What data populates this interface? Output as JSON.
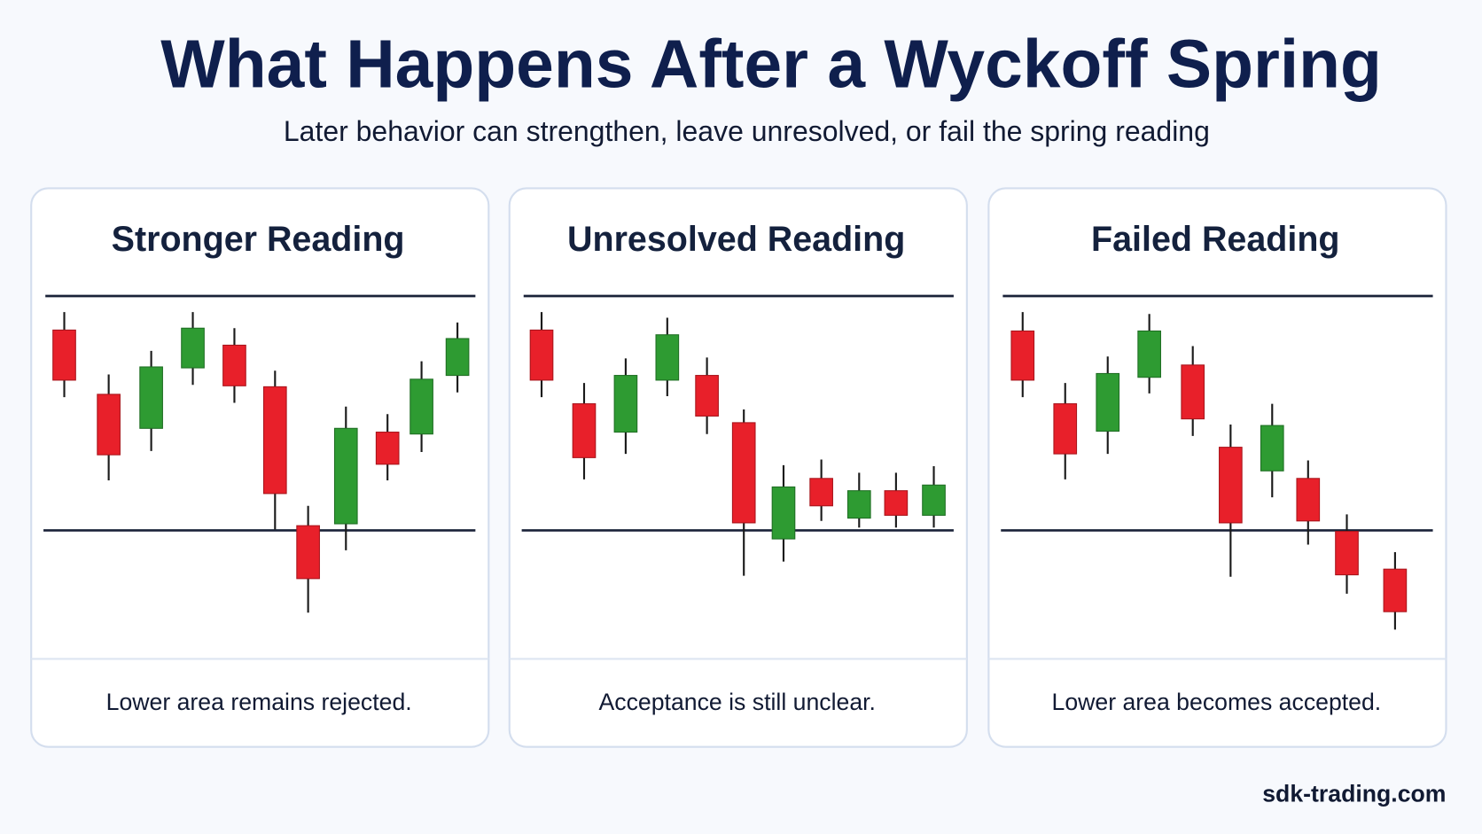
{
  "title": "What Happens After a Wyckoff Spring",
  "subtitle": "Later behavior can strengthen, leave unresolved, or fail the spring reading",
  "panels": [
    {
      "title": "Stronger Reading",
      "caption": "Lower area remains rejected."
    },
    {
      "title": "Unresolved Reading",
      "caption": "Acceptance is still unclear."
    },
    {
      "title": "Failed Reading",
      "caption": "Lower area becomes accepted."
    }
  ],
  "footer": "sdk-trading.com"
}
